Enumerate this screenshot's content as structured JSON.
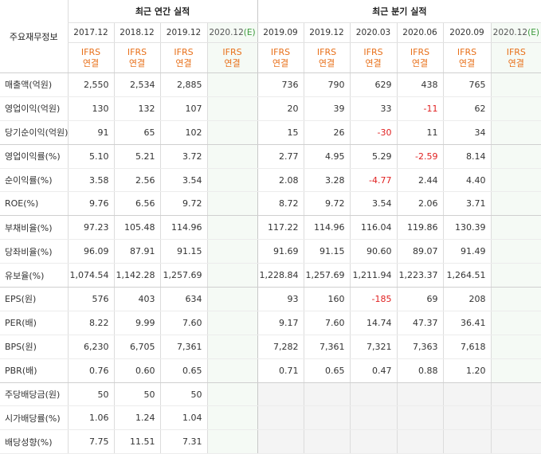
{
  "header": {
    "row_label": "주요재무정보",
    "annual_title": "최근 연간 실적",
    "quarter_title": "최근 분기 실적",
    "annual_periods": [
      "2017.12",
      "2018.12",
      "2019.12"
    ],
    "annual_estimate": {
      "period": "2020.12",
      "tag": "(E)"
    },
    "quarter_periods": [
      "2019.09",
      "2019.12",
      "2020.03",
      "2020.06",
      "2020.09"
    ],
    "quarter_estimate": {
      "period": "2020.12",
      "tag": "(E)"
    },
    "basis_line1": "IFRS",
    "basis_line2": "연결"
  },
  "colors": {
    "accent_orange": "#e8701a",
    "negative_red": "#e02020",
    "estimate_green": "#3a9a3a"
  },
  "rows": [
    {
      "label": "매출액(억원)",
      "annual": [
        "2,550",
        "2,534",
        "2,885",
        ""
      ],
      "quarter": [
        "736",
        "790",
        "629",
        "438",
        "765",
        ""
      ]
    },
    {
      "label": "영업이익(억원)",
      "annual": [
        "130",
        "132",
        "107",
        ""
      ],
      "quarter": [
        "20",
        "39",
        "33",
        "-11",
        "62",
        ""
      ]
    },
    {
      "label": "당기순이익(억원)",
      "annual": [
        "91",
        "65",
        "102",
        ""
      ],
      "quarter": [
        "15",
        "26",
        "-30",
        "11",
        "34",
        ""
      ]
    },
    {
      "label": "영업이익률(%)",
      "annual": [
        "5.10",
        "5.21",
        "3.72",
        ""
      ],
      "quarter": [
        "2.77",
        "4.95",
        "5.29",
        "-2.59",
        "8.14",
        ""
      ]
    },
    {
      "label": "순이익률(%)",
      "annual": [
        "3.58",
        "2.56",
        "3.54",
        ""
      ],
      "quarter": [
        "2.08",
        "3.28",
        "-4.77",
        "2.44",
        "4.40",
        ""
      ]
    },
    {
      "label": "ROE(%)",
      "annual": [
        "9.76",
        "6.56",
        "9.72",
        ""
      ],
      "quarter": [
        "8.72",
        "9.72",
        "3.54",
        "2.06",
        "3.71",
        ""
      ]
    },
    {
      "label": "부채비율(%)",
      "annual": [
        "97.23",
        "105.48",
        "114.96",
        ""
      ],
      "quarter": [
        "117.22",
        "114.96",
        "116.04",
        "119.86",
        "130.39",
        ""
      ]
    },
    {
      "label": "당좌비율(%)",
      "annual": [
        "96.09",
        "87.91",
        "91.15",
        ""
      ],
      "quarter": [
        "91.69",
        "91.15",
        "90.60",
        "89.07",
        "91.49",
        ""
      ]
    },
    {
      "label": "유보율(%)",
      "annual": [
        "1,074.54",
        "1,142.28",
        "1,257.69",
        ""
      ],
      "quarter": [
        "1,228.84",
        "1,257.69",
        "1,211.94",
        "1,223.37",
        "1,264.51",
        ""
      ]
    },
    {
      "label": "EPS(원)",
      "annual": [
        "576",
        "403",
        "634",
        ""
      ],
      "quarter": [
        "93",
        "160",
        "-185",
        "69",
        "208",
        ""
      ]
    },
    {
      "label": "PER(배)",
      "annual": [
        "8.22",
        "9.99",
        "7.60",
        ""
      ],
      "quarter": [
        "9.17",
        "7.60",
        "14.74",
        "47.37",
        "36.41",
        ""
      ]
    },
    {
      "label": "BPS(원)",
      "annual": [
        "6,230",
        "6,705",
        "7,361",
        ""
      ],
      "quarter": [
        "7,282",
        "7,361",
        "7,321",
        "7,363",
        "7,618",
        ""
      ]
    },
    {
      "label": "PBR(배)",
      "annual": [
        "0.76",
        "0.60",
        "0.65",
        ""
      ],
      "quarter": [
        "0.71",
        "0.65",
        "0.47",
        "0.88",
        "1.20",
        ""
      ]
    },
    {
      "label": "주당배당금(원)",
      "annual": [
        "50",
        "50",
        "50",
        ""
      ],
      "quarter": [
        "",
        "",
        "",
        "",
        "",
        ""
      ]
    },
    {
      "label": "시가배당률(%)",
      "annual": [
        "1.06",
        "1.24",
        "1.04",
        ""
      ],
      "quarter": [
        "",
        "",
        "",
        "",
        "",
        ""
      ]
    },
    {
      "label": "배당성향(%)",
      "annual": [
        "7.75",
        "11.51",
        "7.31",
        ""
      ],
      "quarter": [
        "",
        "",
        "",
        "",
        "",
        ""
      ]
    }
  ]
}
